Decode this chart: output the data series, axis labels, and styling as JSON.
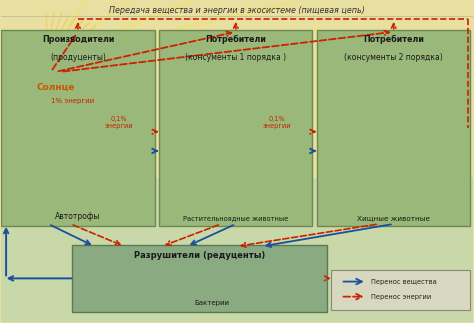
{
  "title": "Передача вещества и энергии в экосистеме (пищевая цепь)",
  "bg_top_color": "#e8dfa0",
  "bg_bottom_color": "#c8d8a8",
  "sun_label": "Солнце",
  "sun_color": "#f5c518",
  "sun_ray_color": "#f0d060",
  "energy_1pct": "1% энергии",
  "energy_01pct_1": "0,1%\nэнергии",
  "energy_01pct_2": "0,1%\nэнергии",
  "box1_title_l1": "Производители",
  "box1_title_l2": "(продуценты)",
  "box1_sub": "Автотрофы",
  "box2_title_l1": "Потребители",
  "box2_title_l2": "(консументы 1 порядка )",
  "box2_sub": "Растительноядные животные",
  "box3_title_l1": "Потребители",
  "box3_title_l2": "(консументы 2 порядка)",
  "box3_sub": "Хищные животные",
  "box4_title": "Разрушители (редуценты)",
  "box4_sub": "Бактерии",
  "box_fill": "#9ab87a",
  "box_fill2": "#8aaa78",
  "box_edge": "#6a8a50",
  "decomp_fill": "#8aaa82",
  "decomp_edge": "#5a7a52",
  "legend_label_matter": "Перенос вещества",
  "legend_label_energy": "Перенос энергии",
  "arrow_matter_color": "#1a4fa0",
  "arrow_energy_color": "#cc2200",
  "title_color": "#333333",
  "sun_text_color": "#cc5500",
  "box_text_color": "#1a1a1a",
  "legend_bg": "#d8d8c0",
  "legend_edge": "#888878"
}
